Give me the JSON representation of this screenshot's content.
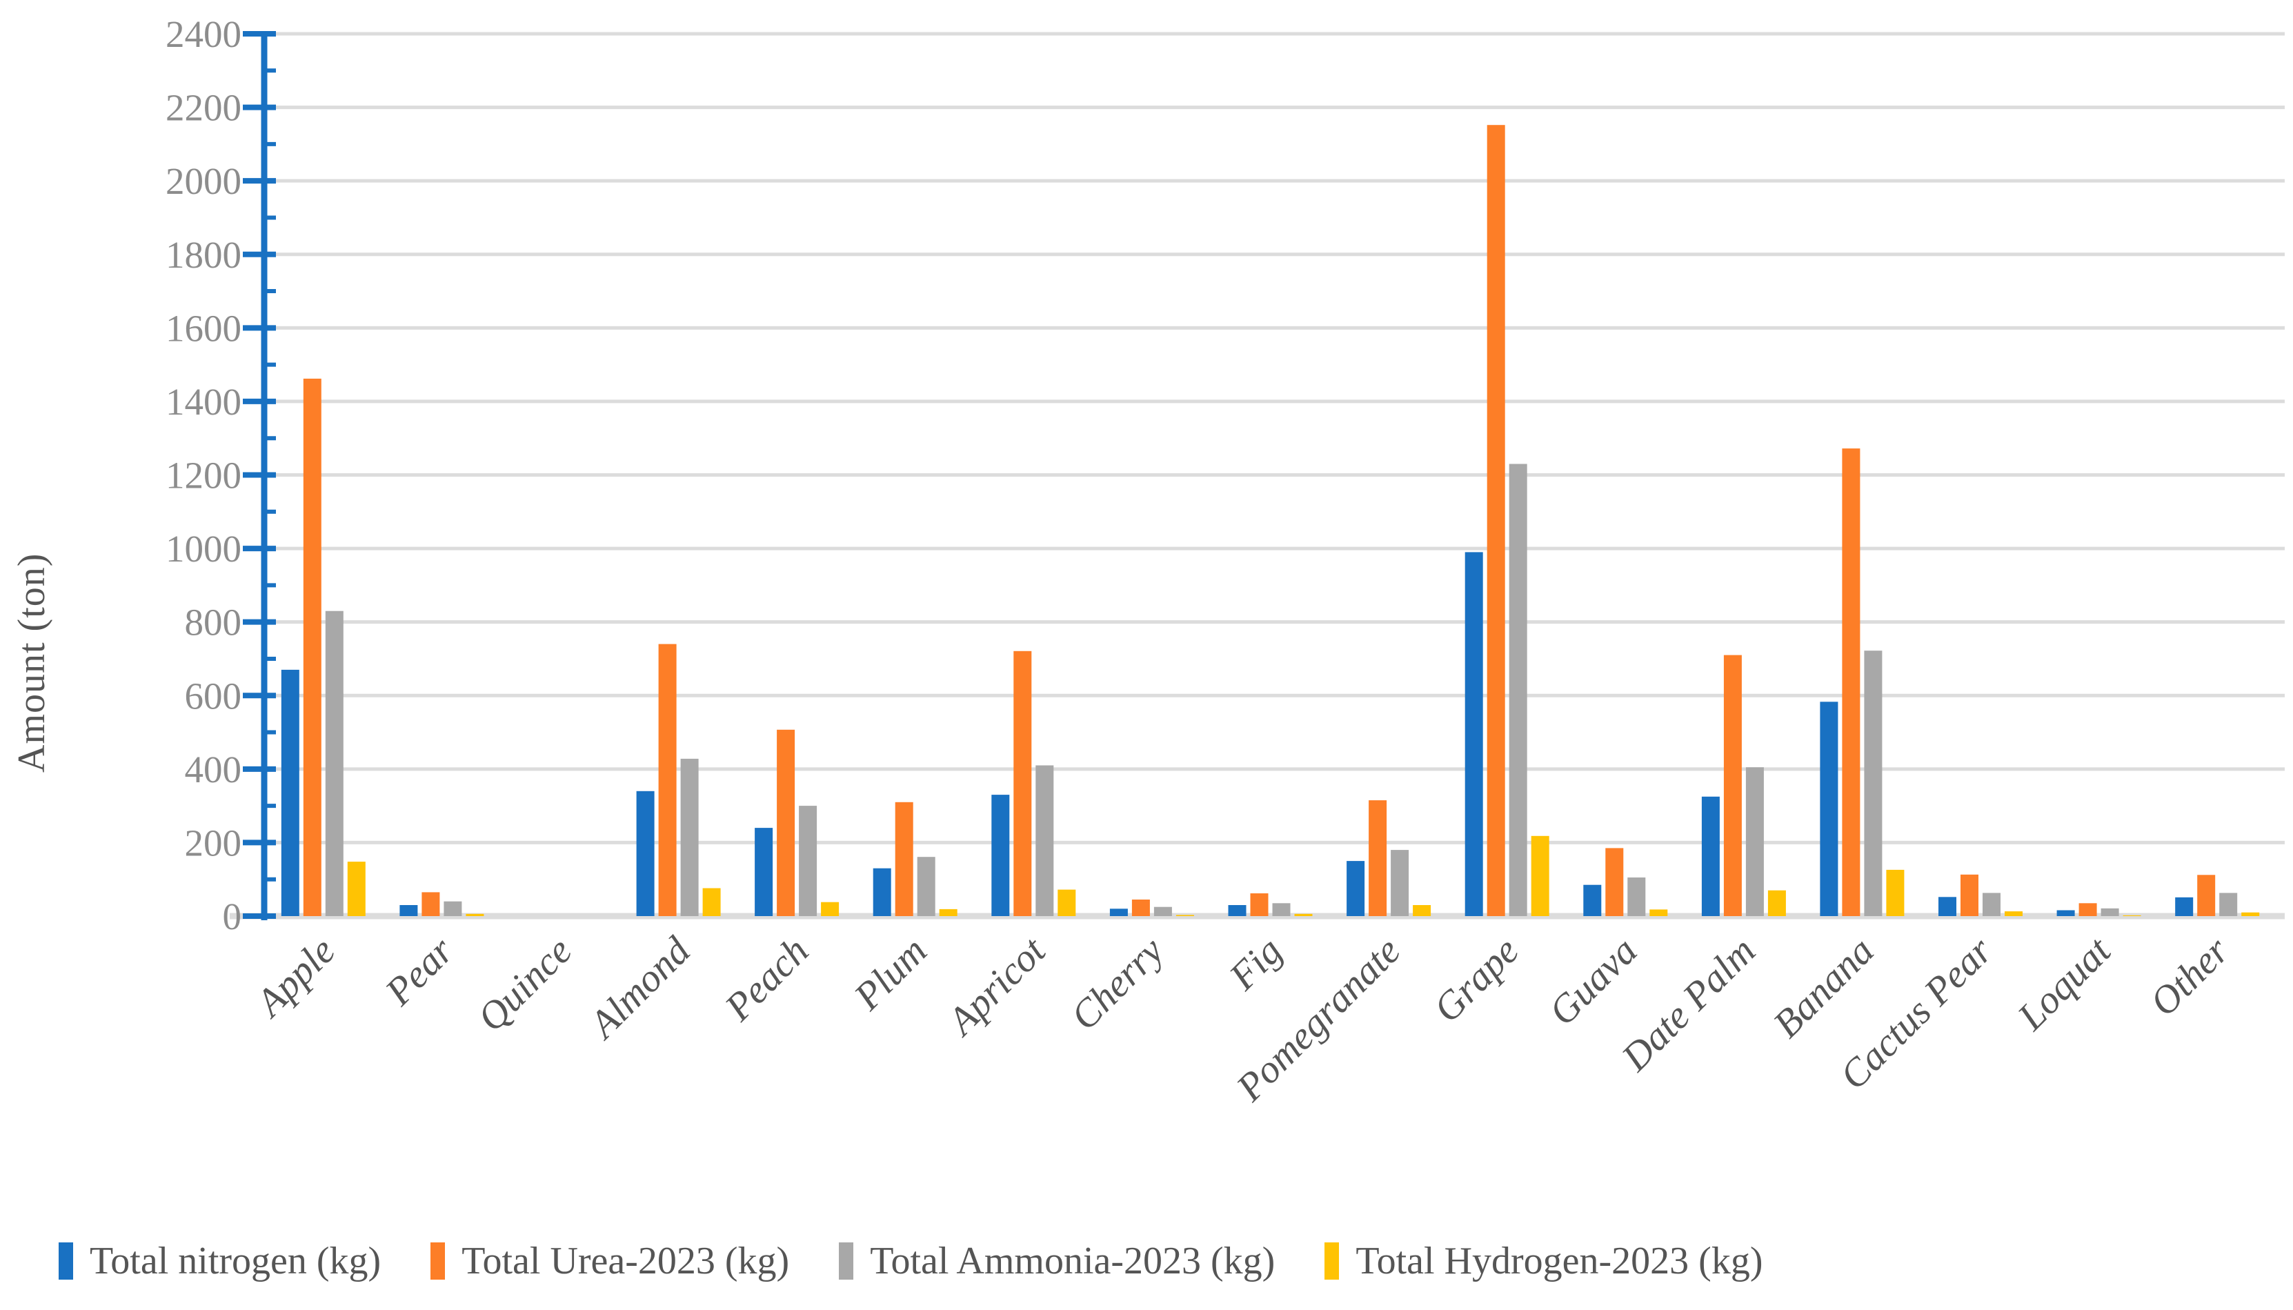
{
  "chart_data": {
    "type": "bar",
    "title": "",
    "xlabel": "",
    "ylabel": "Amount (ton)",
    "ylim": [
      0,
      2400
    ],
    "ytick_step": 200,
    "yticks": [
      0,
      200,
      400,
      600,
      800,
      1000,
      1200,
      1400,
      1600,
      1800,
      2000,
      2200,
      2400
    ],
    "grid": true,
    "legend_position": "bottom",
    "categories": [
      "Apple",
      "Pear",
      "Quince",
      "Almond",
      "Peach",
      "Plum",
      "Apricot",
      "Cherry",
      "Fig",
      "Pomegranate",
      "Grape",
      "Guava",
      "Date Palm",
      "Banana",
      "Cactus Pear",
      "Loquat",
      "Other"
    ],
    "series": [
      {
        "name": "Total nitrogen (kg)",
        "color": "#1971C2",
        "values": [
          670,
          30,
          0,
          340,
          240,
          130,
          330,
          20,
          30,
          150,
          990,
          85,
          325,
          583,
          52,
          16,
          51
        ]
      },
      {
        "name": "Total Urea-2023 (kg)",
        "color": "#FD7E27",
        "values": [
          1462,
          65,
          0,
          740,
          507,
          310,
          721,
          45,
          62,
          315,
          2152,
          185,
          710,
          1272,
          113,
          35,
          112
        ]
      },
      {
        "name": "Total Ammonia-2023 (kg)",
        "color": "#A8A8A8",
        "values": [
          830,
          40,
          0,
          428,
          300,
          161,
          410,
          25,
          35,
          180,
          1230,
          105,
          405,
          722,
          63,
          21,
          63
        ]
      },
      {
        "name": "Total Hydrogen-2023 (kg)",
        "color": "#FFC303",
        "values": [
          148,
          6,
          0,
          76,
          38,
          19,
          72,
          3,
          6,
          30,
          218,
          18,
          70,
          126,
          13,
          2,
          10
        ]
      }
    ]
  },
  "style": {
    "axis_color": "#1971C2",
    "gridline_color": "#DCDCDC",
    "tick_label_color": "#8C8C8C",
    "category_label_color": "#555555",
    "legend_text_color": "#555555",
    "ylabel_color": "#555555",
    "background": "#FFFFFF"
  }
}
